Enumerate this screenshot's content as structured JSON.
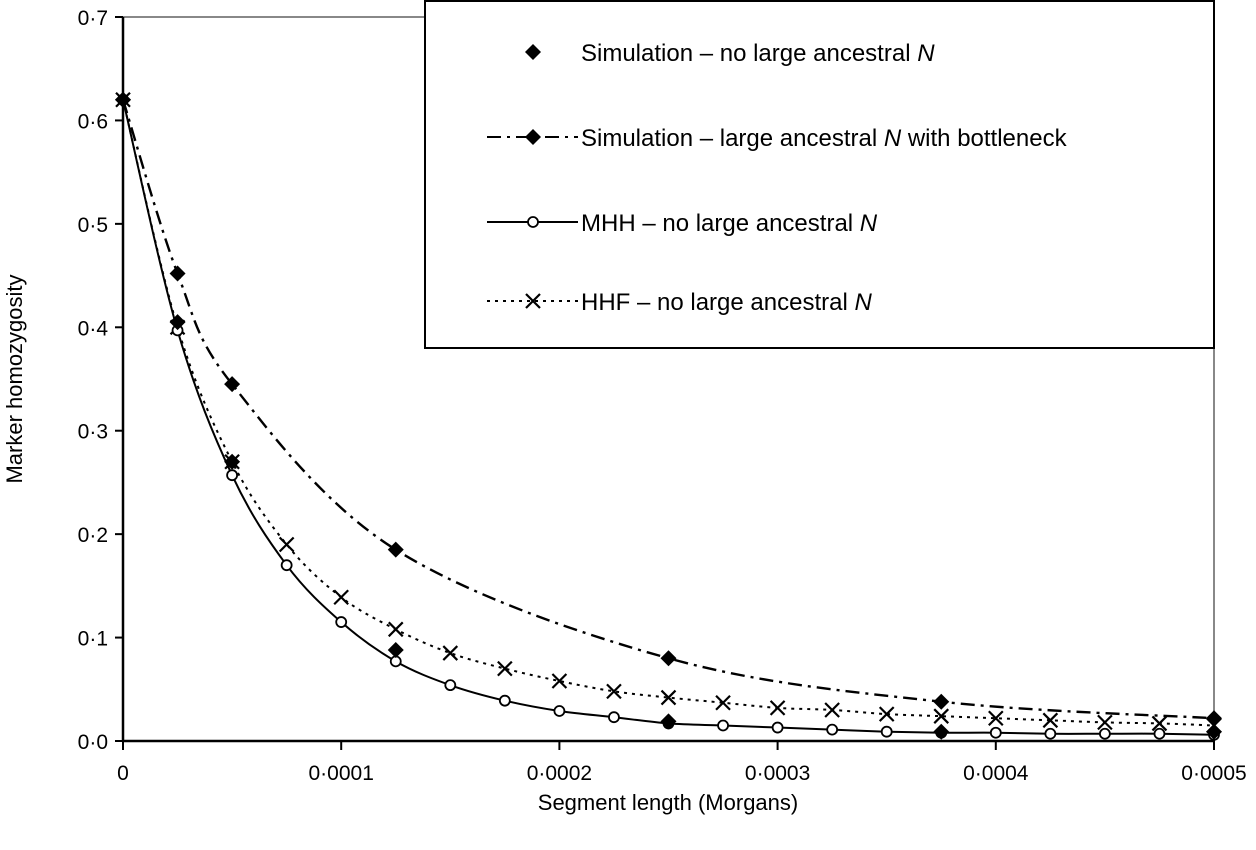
{
  "chart_data": {
    "type": "line",
    "title": "",
    "xlabel": "Segment length (Morgans)",
    "ylabel": "Marker homozygosity",
    "xlim": [
      0,
      0.0005
    ],
    "ylim": [
      0,
      0.7
    ],
    "xticks": [
      0,
      0.0001,
      0.0002,
      0.0003,
      0.0004,
      0.0005
    ],
    "xtick_labels": [
      "0",
      "0·0001",
      "0·0002",
      "0·0003",
      "0·0004",
      "0·0005"
    ],
    "yticks": [
      0,
      0.1,
      0.2,
      0.3,
      0.4,
      0.5,
      0.6,
      0.7
    ],
    "ytick_labels": [
      "0·0",
      "0·1",
      "0·2",
      "0·3",
      "0·4",
      "0·5",
      "0·6",
      "0·7"
    ],
    "grid": false,
    "legend_position": "top-right",
    "series": [
      {
        "name": "Simulation – no large ancestral",
        "name_italic": "N",
        "name_suffix": "",
        "marker": "diamond",
        "line": "none",
        "x": [
          0,
          2.5e-05,
          5e-05,
          0.000125,
          0.00025,
          0.000375,
          0.0005
        ],
        "y": [
          0.62,
          0.405,
          0.27,
          0.088,
          0.019,
          0.009,
          0.009
        ]
      },
      {
        "name": "Simulation – large ancestral",
        "name_italic": "N",
        "name_suffix": " with bottleneck",
        "marker": "diamond",
        "line": "dashdot",
        "x": [
          0,
          2.5e-05,
          5e-05,
          0.000125,
          0.00025,
          0.000375,
          0.0005
        ],
        "y": [
          0.62,
          0.452,
          0.345,
          0.185,
          0.08,
          0.038,
          0.022
        ]
      },
      {
        "name": "MHH – no large ancestral",
        "name_italic": "N",
        "name_suffix": "",
        "marker": "circle",
        "line": "solid",
        "x": [
          0,
          2.5e-05,
          5e-05,
          7.5e-05,
          0.0001,
          0.000125,
          0.00015,
          0.000175,
          0.0002,
          0.000225,
          0.00025,
          0.000275,
          0.0003,
          0.000325,
          0.00035,
          0.000375,
          0.0004,
          0.000425,
          0.00045,
          0.000475,
          0.0005
        ],
        "y": [
          0.62,
          0.397,
          0.257,
          0.17,
          0.115,
          0.077,
          0.054,
          0.039,
          0.029,
          0.023,
          0.017,
          0.015,
          0.013,
          0.011,
          0.009,
          0.008,
          0.008,
          0.007,
          0.007,
          0.007,
          0.006
        ]
      },
      {
        "name": "HHF – no large ancestral",
        "name_italic": "N",
        "name_suffix": "",
        "marker": "cross",
        "line": "dotted",
        "x": [
          0,
          2.5e-05,
          5e-05,
          7.5e-05,
          0.0001,
          0.000125,
          0.00015,
          0.000175,
          0.0002,
          0.000225,
          0.00025,
          0.000275,
          0.0003,
          0.000325,
          0.00035,
          0.000375,
          0.0004,
          0.000425,
          0.00045,
          0.000475,
          0.0005
        ],
        "y": [
          0.62,
          0.4,
          0.27,
          0.19,
          0.139,
          0.108,
          0.085,
          0.07,
          0.058,
          0.048,
          0.042,
          0.037,
          0.032,
          0.03,
          0.026,
          0.024,
          0.022,
          0.02,
          0.018,
          0.017,
          0.015
        ]
      }
    ]
  }
}
